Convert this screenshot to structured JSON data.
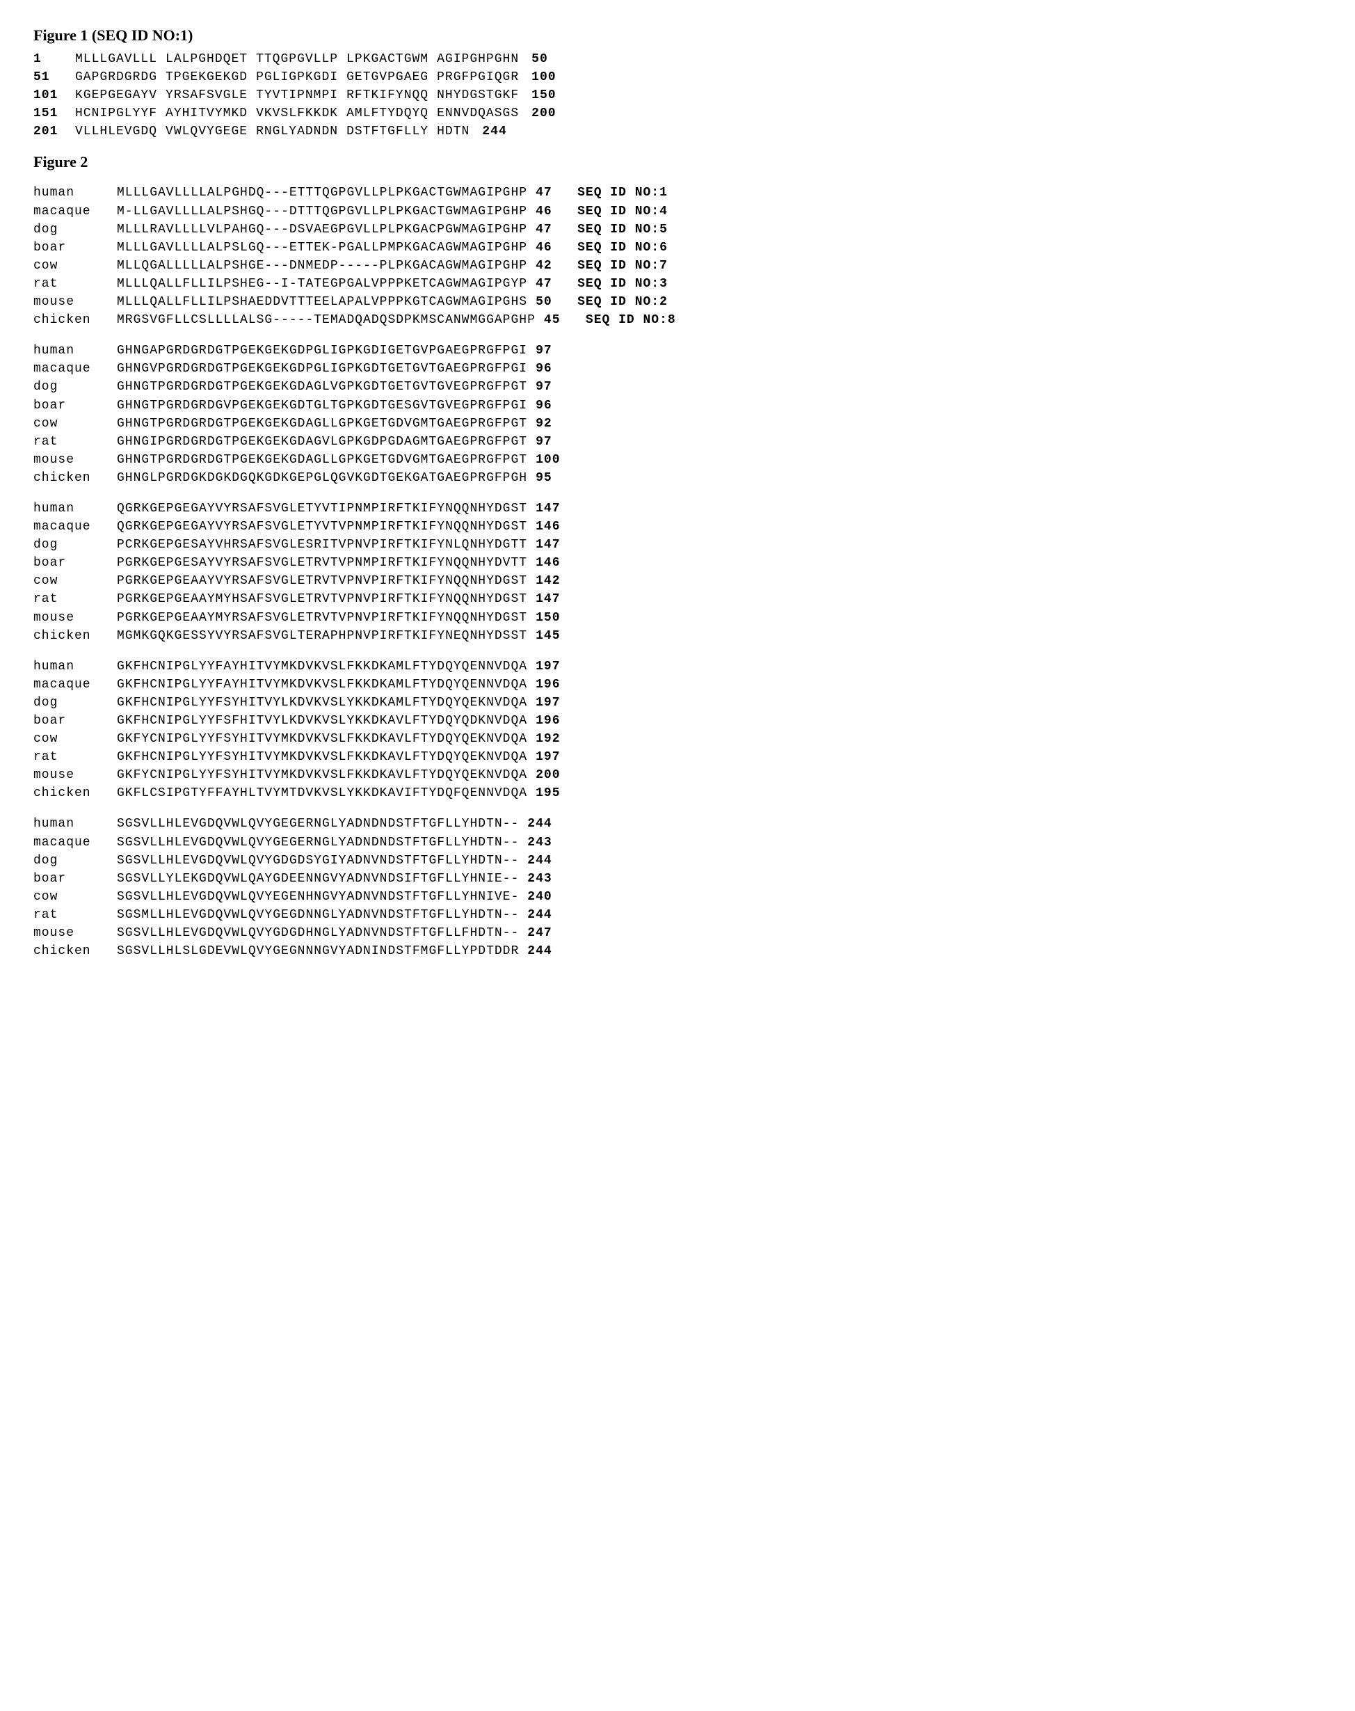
{
  "figure1": {
    "title": "Figure 1   (SEQ ID NO:1)",
    "rows": [
      {
        "start": "1",
        "groups": [
          "MLLLGAVLLL",
          "LALPGHDQET",
          "TTQGPGVLLP",
          "LPKGACTGWM",
          "AGIPGHPGHN"
        ],
        "end": "50"
      },
      {
        "start": "51",
        "groups": [
          "GAPGRDGRDG",
          "TPGEKGEKGD",
          "PGLIGPKGDI",
          "GETGVPGAEG",
          "PRGFPGIQGR"
        ],
        "end": "100"
      },
      {
        "start": "101",
        "groups": [
          "KGEPGEGAYV",
          "YRSAFSVGLE",
          "TYVTIPNMPI",
          "RFTKIFYNQQ",
          "NHYDGSTGKF"
        ],
        "end": "150"
      },
      {
        "start": "151",
        "groups": [
          "HCNIPGLYYF",
          "AYHITVYMKD",
          "VKVSLFKKDK",
          "AMLFTYDQYQ",
          "ENNVDQASGS"
        ],
        "end": "200"
      },
      {
        "start": "201",
        "groups": [
          "VLLHLEVGDQ",
          "VWLQVYGEGE",
          "RNGLYADNDN",
          "DSTFTGFLLY",
          "HDTN"
        ],
        "end": "244"
      }
    ]
  },
  "figure2": {
    "title": "Figure 2",
    "blocks": [
      [
        {
          "species": "human",
          "seq": "MLLLGAVLLLLALPGHDQ---ETTTQGPGVLLPLPKGACTGWMAGIPGHP",
          "num": "47",
          "seqid": "SEQ ID NO:1"
        },
        {
          "species": "macaque",
          "seq": "M-LLGAVLLLLALPSHGQ---DTTTQGPGVLLPLPKGACTGWMAGIPGHP",
          "num": "46",
          "seqid": "SEQ ID NO:4"
        },
        {
          "species": "dog",
          "seq": "MLLLRAVLLLLVLPAHGQ---DSVAEGPGVLLPLPKGACPGWMAGIPGHP",
          "num": "47",
          "seqid": "SEQ ID NO:5"
        },
        {
          "species": "boar",
          "seq": "MLLLGAVLLLLALPSLGQ---ETTEK-PGALLPMPKGACAGWMAGIPGHP",
          "num": "46",
          "seqid": "SEQ ID NO:6"
        },
        {
          "species": "cow",
          "seq": "MLLQGALLLLLALPSHGE---DNMEDP-----PLPKGACAGWMAGIPGHP",
          "num": "42",
          "seqid": "SEQ ID NO:7"
        },
        {
          "species": "rat",
          "seq": "MLLLQALLFLLILPSHEG--I-TATEGPGALVPPPKETCAGWMAGIPGYP",
          "num": "47",
          "seqid": "SEQ ID NO:3"
        },
        {
          "species": "mouse",
          "seq": "MLLLQALLFLLILPSHAEDDVTTTEELAPALVPPPKGTCAGWMAGIPGHS",
          "num": "50",
          "seqid": "SEQ ID NO:2"
        },
        {
          "species": "chicken",
          "seq": "MRGSVGFLLCSLLLLALSG-----TEMADQADQSDPKMSCANWMGGAPGHP",
          "num": "45",
          "seqid": "SEQ ID NO:8"
        }
      ],
      [
        {
          "species": "human",
          "seq": "GHNGAPGRDGRDGTPGEKGEKGDPGLIGPKGDIGETGVPGAEGPRGFPGI",
          "num": "97"
        },
        {
          "species": "macaque",
          "seq": "GHNGVPGRDGRDGTPGEKGEKGDPGLIGPKGDTGETGVTGAEGPRGFPGI",
          "num": "96"
        },
        {
          "species": "dog",
          "seq": "GHNGTPGRDGRDGTPGEKGEKGDAGLVGPKGDTGETGVTGVEGPRGFPGT",
          "num": "97"
        },
        {
          "species": "boar",
          "seq": "GHNGTPGRDGRDGVPGEKGEKGDTGLTGPKGDTGESGVTGVEGPRGFPGI",
          "num": "96"
        },
        {
          "species": "cow",
          "seq": "GHNGTPGRDGRDGTPGEKGEKGDAGLLGPKGETGDVGMTGAEGPRGFPGT",
          "num": "92"
        },
        {
          "species": "rat",
          "seq": "GHNGIPGRDGRDGTPGEKGEKGDAGVLGPKGDPGDAGMTGAEGPRGFPGT",
          "num": "97"
        },
        {
          "species": "mouse",
          "seq": "GHNGTPGRDGRDGTPGEKGEKGDAGLLGPKGETGDVGMTGAEGPRGFPGT",
          "num": "100"
        },
        {
          "species": "chicken",
          "seq": "GHNGLPGRDGKDGKDGQKGDKGEPGLQGVKGDTGEKGATGAEGPRGFPGH",
          "num": "95"
        }
      ],
      [
        {
          "species": "human",
          "seq": "QGRKGEPGEGAYVYRSAFSVGLETYVTIPNMPIRFTKIFYNQQNHYDGST",
          "num": "147"
        },
        {
          "species": "macaque",
          "seq": "QGRKGEPGEGAYVYRSAFSVGLETYVTVPNMPIRFTKIFYNQQNHYDGST",
          "num": "146"
        },
        {
          "species": "dog",
          "seq": "PCRKGEPGESAYVHRSAFSVGLESRITVPNVPIRFTKIFYNLQNHYDGTT",
          "num": "147"
        },
        {
          "species": "boar",
          "seq": "PGRKGEPGESAYVYRSAFSVGLETRVTVPNMPIRFTKIFYNQQNHYDVTT",
          "num": "146"
        },
        {
          "species": "cow",
          "seq": "PGRKGEPGEAAYVYRSAFSVGLETRVTVPNVPIRFTKIFYNQQNHYDGST",
          "num": "142"
        },
        {
          "species": "rat",
          "seq": "PGRKGEPGEAAYMYHSAFSVGLETRVTVPNVPIRFTKIFYNQQNHYDGST",
          "num": "147"
        },
        {
          "species": "mouse",
          "seq": "PGRKGEPGEAAYMYRSAFSVGLETRVTVPNVPIRFTKIFYNQQNHYDGST",
          "num": "150"
        },
        {
          "species": "chicken",
          "seq": "MGMKGQKGESSYVYRSAFSVGLTERAPHPNVPIRFTKIFYNEQNHYDSST",
          "num": "145"
        }
      ],
      [
        {
          "species": "human",
          "seq": "GKFHCNIPGLYYFAYHITVYMKDVKVSLFKKDKAMLFTYDQYQENNVDQA",
          "num": "197"
        },
        {
          "species": "macaque",
          "seq": "GKFHCNIPGLYYFAYHITVYMKDVKVSLFKKDKAMLFTYDQYQENNVDQA",
          "num": "196"
        },
        {
          "species": "dog",
          "seq": "GKFHCNIPGLYYFSYHITVYLKDVKVSLYKKDKAMLFTYDQYQEKNVDQA",
          "num": "197"
        },
        {
          "species": "boar",
          "seq": "GKFHCNIPGLYYFSFHITVYLKDVKVSLYKKDKAVLFTYDQYQDKNVDQA",
          "num": "196"
        },
        {
          "species": "cow",
          "seq": "GKFYCNIPGLYYFSYHITVYMKDVKVSLFKKDKAVLFTYDQYQEKNVDQA",
          "num": "192"
        },
        {
          "species": "rat",
          "seq": "GKFHCNIPGLYYFSYHITVYMKDVKVSLFKKDKAVLFTYDQYQEKNVDQA",
          "num": "197"
        },
        {
          "species": "mouse",
          "seq": "GKFYCNIPGLYYFSYHITVYMKDVKVSLFKKDKAVLFTYDQYQEKNVDQA",
          "num": "200"
        },
        {
          "species": "chicken",
          "seq": "GKFLCSIPGTYFFAYHLTVYMTDVKVSLYKKDKAVIFTYDQFQENNVDQA",
          "num": "195"
        }
      ],
      [
        {
          "species": "human",
          "seq": "SGSVLLHLEVGDQVWLQVYGEGERNGLYADNDNDSTFTGFLLYHDTN--",
          "num": "244"
        },
        {
          "species": "macaque",
          "seq": "SGSVLLHLEVGDQVWLQVYGEGERNGLYADNDNDSTFTGFLLYHDTN--",
          "num": "243"
        },
        {
          "species": "dog",
          "seq": "SGSVLLHLEVGDQVWLQVYGDGDSYGIYADNVNDSTFTGFLLYHDTN--",
          "num": "244"
        },
        {
          "species": "boar",
          "seq": "SGSVLLYLEKGDQVWLQAYGDEENNGVYADNVNDSIFTGFLLYHNIE--",
          "num": "243"
        },
        {
          "species": "cow",
          "seq": "SGSVLLHLEVGDQVWLQVYEGENHNGVYADNVNDSTFTGFLLYHNIVE-",
          "num": "240"
        },
        {
          "species": "rat",
          "seq": "SGSMLLHLEVGDQVWLQVYGEGDNNGLYADNVNDSTFTGFLLYHDTN--",
          "num": "244"
        },
        {
          "species": "mouse",
          "seq": "SGSVLLHLEVGDQVWLQVYGDGDHNGLYADNVNDSTFTGFLLFHDTN--",
          "num": "247"
        },
        {
          "species": "chicken",
          "seq": "SGSVLLHLSLGDEVWLQVYGEGNNNGVYADNINDSTFMGFLLYPDTDDR",
          "num": "244"
        }
      ]
    ]
  }
}
